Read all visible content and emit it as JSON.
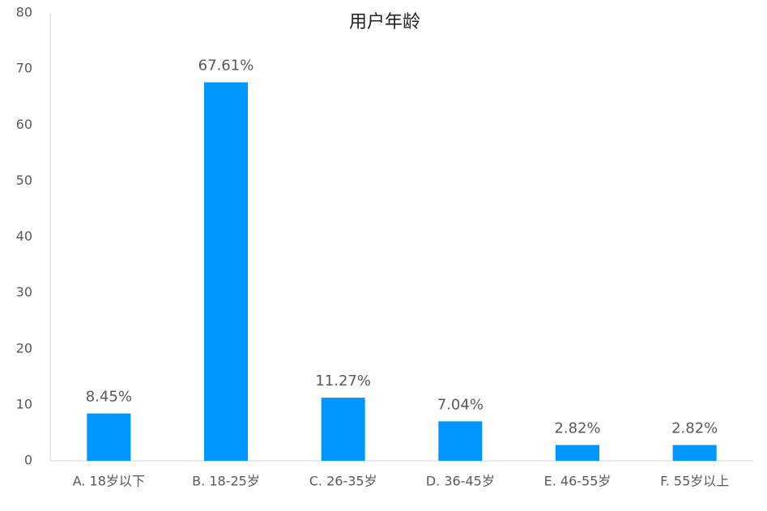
{
  "chart_data": {
    "type": "bar",
    "title": "用户年龄",
    "categories": [
      "A. 18岁以下",
      "B. 18-25岁",
      "C. 26-35岁",
      "D. 36-45岁",
      "E. 46-55岁",
      "F. 55岁以上"
    ],
    "values": [
      8.45,
      67.61,
      11.27,
      7.04,
      2.82,
      2.82
    ],
    "value_labels": [
      "8.45%",
      "67.61%",
      "11.27%",
      "7.04%",
      "2.82%",
      "2.82%"
    ],
    "color": "#0096ff",
    "ylim": [
      0,
      80
    ],
    "yticks": [
      0,
      10,
      20,
      30,
      40,
      50,
      60,
      70,
      80
    ],
    "grid": false
  }
}
